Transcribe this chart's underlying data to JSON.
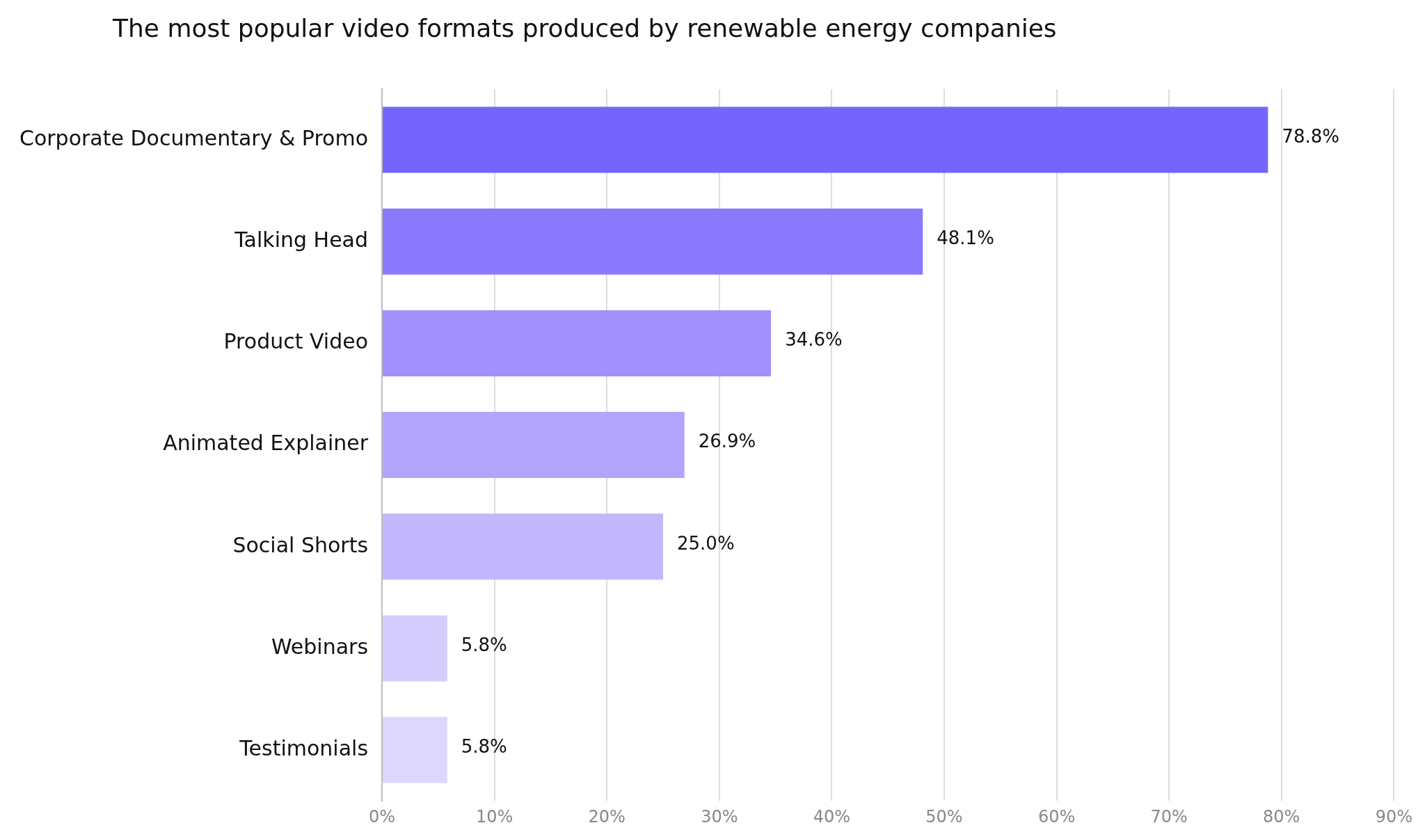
{
  "chart_data": {
    "type": "bar",
    "orientation": "horizontal",
    "title": "The most popular video formats produced by renewable energy companies",
    "categories": [
      "Corporate Documentary & Promo",
      "Talking Head",
      "Product Video",
      "Animated Explainer",
      "Social Shorts",
      "Webinars",
      "Testimonials"
    ],
    "values": [
      78.8,
      48.1,
      34.6,
      26.9,
      25.0,
      5.8,
      5.8
    ],
    "colors": [
      "#7665fd",
      "#8b7afd",
      "#a290fd",
      "#b2a3fd",
      "#c2b7fd",
      "#d5cdfe",
      "#ddd7fe"
    ],
    "value_labels": [
      "78.8%",
      "48.1%",
      "34.6%",
      "26.9%",
      "25.0%",
      "5.8%",
      "5.8%"
    ],
    "xlim": [
      0,
      90
    ],
    "xticks": [
      {
        "value": 0,
        "label": "0%"
      },
      {
        "value": 10,
        "label": "10%"
      },
      {
        "value": 20,
        "label": "20%"
      },
      {
        "value": 30,
        "label": "30%"
      },
      {
        "value": 40,
        "label": "40%"
      },
      {
        "value": 50,
        "label": "50%"
      },
      {
        "value": 60,
        "label": "60%"
      },
      {
        "value": 70,
        "label": "70%"
      },
      {
        "value": 80,
        "label": "80%"
      },
      {
        "value": 90,
        "label": "90%"
      }
    ],
    "grid": "x",
    "legend": false
  }
}
